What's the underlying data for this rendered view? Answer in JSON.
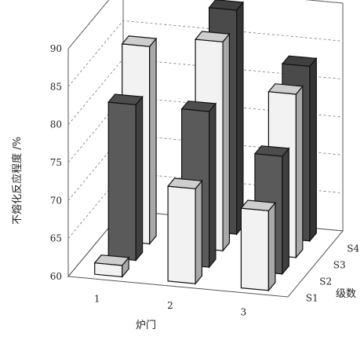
{
  "chart_data": {
    "type": "bar",
    "title": "",
    "xlabel": "炉门",
    "ylabel": "不熔化反应程度 /%",
    "zlabel": "级数",
    "ylim": [
      60,
      90
    ],
    "yticks": [
      60,
      65,
      70,
      75,
      80,
      85,
      90
    ],
    "categories": [
      "1",
      "2",
      "3"
    ],
    "depth_categories": [
      "S1",
      "S2",
      "S3",
      "S4"
    ],
    "grid": true,
    "series": [
      {
        "name": "S1",
        "values": [
          61.5,
          72.5,
          70.5
        ],
        "color": "#f2f2f2"
      },
      {
        "name": "S2",
        "values": [
          80.5,
          80.5,
          75.5
        ],
        "color": "#5a5a5a"
      },
      {
        "name": "S3",
        "values": [
          86,
          87.5,
          81.5
        ],
        "color": "#f2f2f2"
      },
      {
        "name": "S4",
        "values": [
          null,
          89.5,
          83
        ],
        "color": "#4a4a4a"
      }
    ]
  }
}
